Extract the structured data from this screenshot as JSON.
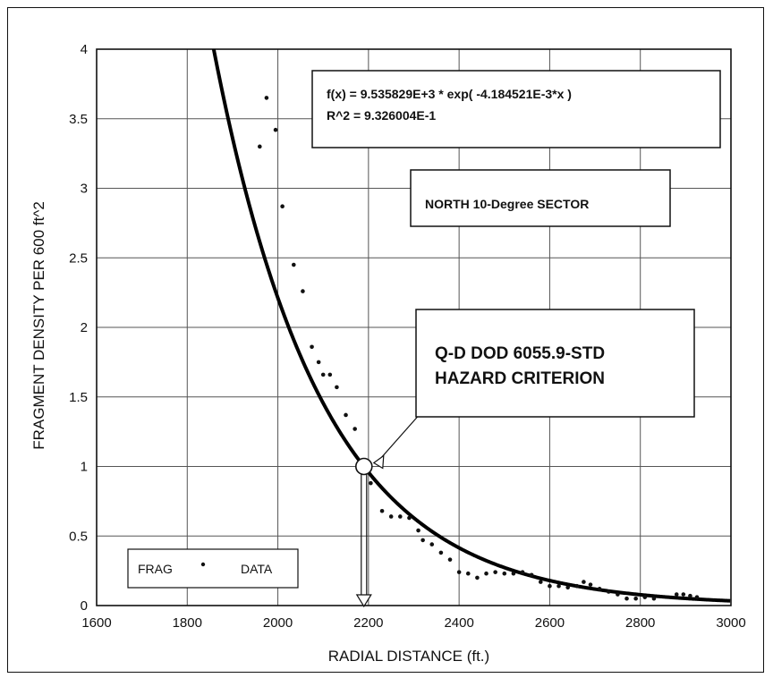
{
  "chart_data": {
    "type": "scatter",
    "title": "",
    "xlabel": "RADIAL DISTANCE (ft.)",
    "ylabel": "FRAGMENT DENSITY PER 600 ft^2",
    "xlim": [
      1600,
      3000
    ],
    "ylim": [
      0,
      4
    ],
    "x_ticks": [
      1600,
      1800,
      2000,
      2200,
      2400,
      2600,
      2800,
      3000
    ],
    "y_ticks": [
      0,
      0.5,
      1,
      1.5,
      2,
      2.5,
      3,
      3.5,
      4
    ],
    "grid": true,
    "fit": {
      "equation": "f(x) = 9.535829E+3 * exp( -4.184521E-3*x )",
      "r_squared": "R^2 = 9.326004E-1",
      "a": 9535.829,
      "b": -0.004184521
    },
    "sector_label": "NORTH 10-Degree SECTOR",
    "criterion": {
      "line1": "Q-D DOD 6055.9-STD",
      "line2": "HAZARD CRITERION",
      "x": 2190,
      "y": 1
    },
    "legend": {
      "label_left": "FRAG",
      "label_right": "DATA",
      "position": "bottom-left"
    },
    "series": [
      {
        "name": "FRAG DATA",
        "points": [
          [
            1960,
            3.3
          ],
          [
            1975,
            3.65
          ],
          [
            1995,
            3.42
          ],
          [
            2010,
            2.87
          ],
          [
            2035,
            2.45
          ],
          [
            2055,
            2.26
          ],
          [
            2075,
            1.86
          ],
          [
            2090,
            1.75
          ],
          [
            2100,
            1.66
          ],
          [
            2115,
            1.66
          ],
          [
            2130,
            1.57
          ],
          [
            2150,
            1.37
          ],
          [
            2170,
            1.27
          ],
          [
            2205,
            0.88
          ],
          [
            2230,
            0.68
          ],
          [
            2250,
            0.64
          ],
          [
            2270,
            0.64
          ],
          [
            2290,
            0.63
          ],
          [
            2310,
            0.54
          ],
          [
            2320,
            0.47
          ],
          [
            2340,
            0.44
          ],
          [
            2360,
            0.38
          ],
          [
            2380,
            0.33
          ],
          [
            2400,
            0.24
          ],
          [
            2420,
            0.23
          ],
          [
            2440,
            0.2
          ],
          [
            2460,
            0.23
          ],
          [
            2480,
            0.24
          ],
          [
            2500,
            0.23
          ],
          [
            2520,
            0.23
          ],
          [
            2540,
            0.24
          ],
          [
            2560,
            0.22
          ],
          [
            2580,
            0.17
          ],
          [
            2600,
            0.14
          ],
          [
            2620,
            0.14
          ],
          [
            2640,
            0.13
          ],
          [
            2660,
            0.14
          ],
          [
            2675,
            0.17
          ],
          [
            2690,
            0.15
          ],
          [
            2710,
            0.12
          ],
          [
            2730,
            0.1
          ],
          [
            2750,
            0.08
          ],
          [
            2770,
            0.05
          ],
          [
            2790,
            0.05
          ],
          [
            2810,
            0.06
          ],
          [
            2830,
            0.05
          ],
          [
            2880,
            0.08
          ],
          [
            2895,
            0.08
          ],
          [
            2910,
            0.07
          ],
          [
            2925,
            0.06
          ]
        ]
      }
    ]
  }
}
